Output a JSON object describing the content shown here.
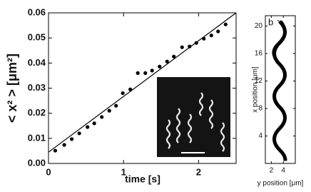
{
  "chart_data": [
    {
      "type": "scatter",
      "ylabel": "< x² >   [μm²]",
      "xlabel": "time [s]",
      "xlim": [
        0,
        2.5
      ],
      "ylim": [
        0,
        0.06
      ],
      "xticks": [
        0,
        1,
        2
      ],
      "yticks": [
        {
          "value": 0,
          "label": "0.00"
        },
        {
          "value": 0.01,
          "label": "0.01"
        },
        {
          "value": 0.02,
          "label": "0.02"
        },
        {
          "value": 0.03,
          "label": "0.03"
        },
        {
          "value": 0.04,
          "label": "0.04"
        },
        {
          "value": 0.05,
          "label": "0.05"
        },
        {
          "value": 0.06,
          "label": "0.06"
        }
      ],
      "series": [
        {
          "color": "#000000",
          "marker": "dot",
          "x": [
            0.09,
            0.21,
            0.31,
            0.41,
            0.52,
            0.61,
            0.71,
            0.81,
            0.9,
            0.99,
            1.09,
            1.19,
            1.29,
            1.38,
            1.48,
            1.58,
            1.67,
            1.78,
            1.88,
            1.97,
            2.07,
            2.17,
            2.26,
            2.36
          ],
          "values": [
            0.0051,
            0.0074,
            0.0097,
            0.012,
            0.0145,
            0.016,
            0.0185,
            0.021,
            0.023,
            0.028,
            0.0295,
            0.036,
            0.036,
            0.037,
            0.0386,
            0.0406,
            0.0426,
            0.0463,
            0.0466,
            0.048,
            0.0497,
            0.051,
            0.0526,
            0.0554
          ]
        },
        {
          "color": "#000000",
          "marker": "line",
          "x": [
            0,
            2.5
          ],
          "values": [
            0.0045,
            0.06
          ]
        }
      ]
    },
    {
      "type": "trajectory",
      "label": "b",
      "xlabel": "y position [μm]",
      "ylabel": "x position [μm]",
      "xlim": [
        1,
        6
      ],
      "ylim": [
        0,
        21.5
      ],
      "xticks": [
        2,
        4
      ],
      "yticks": [
        4,
        8,
        12,
        16,
        20
      ],
      "series": []
    }
  ]
}
